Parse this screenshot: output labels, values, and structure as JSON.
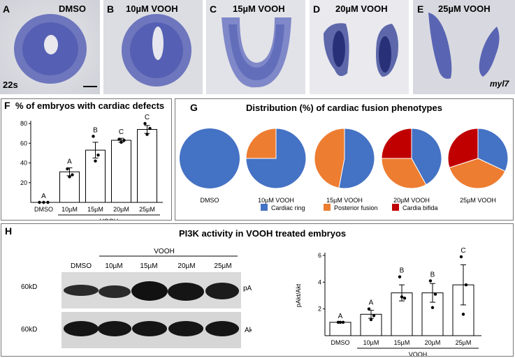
{
  "panels_top": [
    {
      "letter": "A",
      "label": "DMSO"
    },
    {
      "letter": "B",
      "label": "10µM VOOH"
    },
    {
      "letter": "C",
      "label": "15µM VOOH"
    },
    {
      "letter": "D",
      "label": "20µM VOOH"
    },
    {
      "letter": "E",
      "label": "25µM VOOH"
    }
  ],
  "stage_label": "22s",
  "gene_label": "myl7",
  "panel_f": {
    "letter": "F",
    "title": "% of embryos with cardiac defects",
    "group_label": "VOOH"
  },
  "panel_g": {
    "letter": "G",
    "title": "Distribution (%) of cardiac fusion phenotypes"
  },
  "panel_h": {
    "letter": "H",
    "title": "PI3K activity in VOOH treated embryos",
    "blot_group": "VOOH",
    "blot_lanes": [
      "DMSO",
      "10µM",
      "15µM",
      "20µM",
      "25µM"
    ],
    "size_marker_1": "60kD",
    "size_marker_2": "60kD",
    "band_1": "pAkt",
    "band_2": "Akt",
    "group_label": "VOOH"
  },
  "colors": {
    "cardiac_ring": "#4472C4",
    "posterior_fusion": "#ED7D31",
    "cardia_bifida": "#C00000",
    "stain": "#3b4aa8"
  },
  "chart_data": [
    {
      "type": "bar",
      "title": "% of embryos with cardiac defects",
      "categories": [
        "DMSO",
        "10µM",
        "15µM",
        "20µM",
        "25µM"
      ],
      "values": [
        0,
        31,
        53,
        63,
        74
      ],
      "errors": [
        0,
        4,
        8,
        2,
        4
      ],
      "points": [
        [
          0,
          0,
          0
        ],
        [
          34,
          28,
          26
        ],
        [
          67,
          48,
          42
        ],
        [
          64,
          63,
          61
        ],
        [
          80,
          75,
          69
        ]
      ],
      "significance": [
        "A",
        "A",
        "B",
        "C",
        "C"
      ],
      "ylim": [
        0,
        80
      ],
      "yticks": [
        20,
        40,
        60,
        80
      ],
      "xlabel": "VOOH"
    },
    {
      "type": "pie",
      "title": "Distribution (%) of cardiac fusion phenotypes",
      "legend": [
        "Cardiac ring",
        "Posterior fusion",
        "Cardia bifida"
      ],
      "pies": [
        {
          "label": "DMSO",
          "values": [
            100,
            0,
            0
          ]
        },
        {
          "label": "10µM VOOH",
          "values": [
            75,
            25,
            0
          ]
        },
        {
          "label": "15µM VOOH",
          "values": [
            53,
            47,
            0
          ]
        },
        {
          "label": "20µM VOOH",
          "values": [
            42,
            33,
            25
          ]
        },
        {
          "label": "25µM VOOH",
          "values": [
            32,
            38,
            30
          ]
        }
      ]
    },
    {
      "type": "bar",
      "categories": [
        "DMSO",
        "10µM",
        "15µM",
        "20µM",
        "25µM"
      ],
      "values": [
        1.0,
        1.6,
        3.2,
        3.2,
        3.8
      ],
      "errors": [
        0,
        0.3,
        0.6,
        0.7,
        1.5
      ],
      "points": [
        [
          1,
          1,
          1
        ],
        [
          2.0,
          1.5,
          1.2
        ],
        [
          4.4,
          2.8,
          2.9
        ],
        [
          4.1,
          3.1,
          2.1
        ],
        [
          5.9,
          3.8,
          1.6
        ]
      ],
      "significance": [
        "A",
        "A",
        "B",
        "B",
        "C"
      ],
      "ylabel": "pAkt/Akt",
      "ylim": [
        0,
        6
      ],
      "yticks": [
        2,
        4,
        6
      ],
      "xlabel": "VOOH"
    }
  ]
}
